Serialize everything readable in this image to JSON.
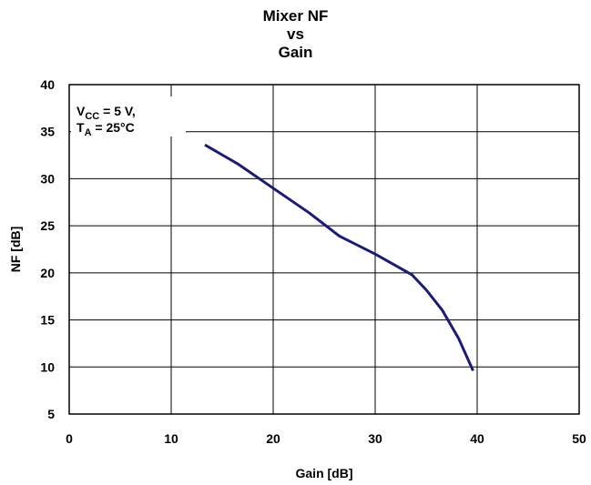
{
  "chart_data": {
    "type": "line",
    "title_lines": [
      "Mixer NF",
      "vs",
      "Gain"
    ],
    "xlabel": "Gain [dB]",
    "ylabel": "NF [dB]",
    "xlim": [
      0,
      50
    ],
    "ylim": [
      5,
      40
    ],
    "xticks": [
      0,
      10,
      20,
      30,
      40,
      50
    ],
    "yticks": [
      5,
      10,
      15,
      20,
      25,
      30,
      35,
      40
    ],
    "grid": true,
    "annotation": {
      "line1_main": "V",
      "line1_sub": "CC",
      "line1_rest": " = 5 V,",
      "line2_main": "T",
      "line2_sub": "A",
      "line2_rest": " = 25°C"
    },
    "series": [
      {
        "color": "#1a1a7a",
        "points": [
          [
            13.3,
            33.6
          ],
          [
            16.5,
            31.6
          ],
          [
            20.0,
            29.0
          ],
          [
            23.5,
            26.4
          ],
          [
            26.5,
            23.9
          ],
          [
            30.0,
            22.0
          ],
          [
            33.6,
            19.8
          ],
          [
            35.0,
            18.2
          ],
          [
            36.6,
            16.0
          ],
          [
            38.2,
            13.0
          ],
          [
            39.6,
            9.6
          ]
        ]
      }
    ]
  }
}
